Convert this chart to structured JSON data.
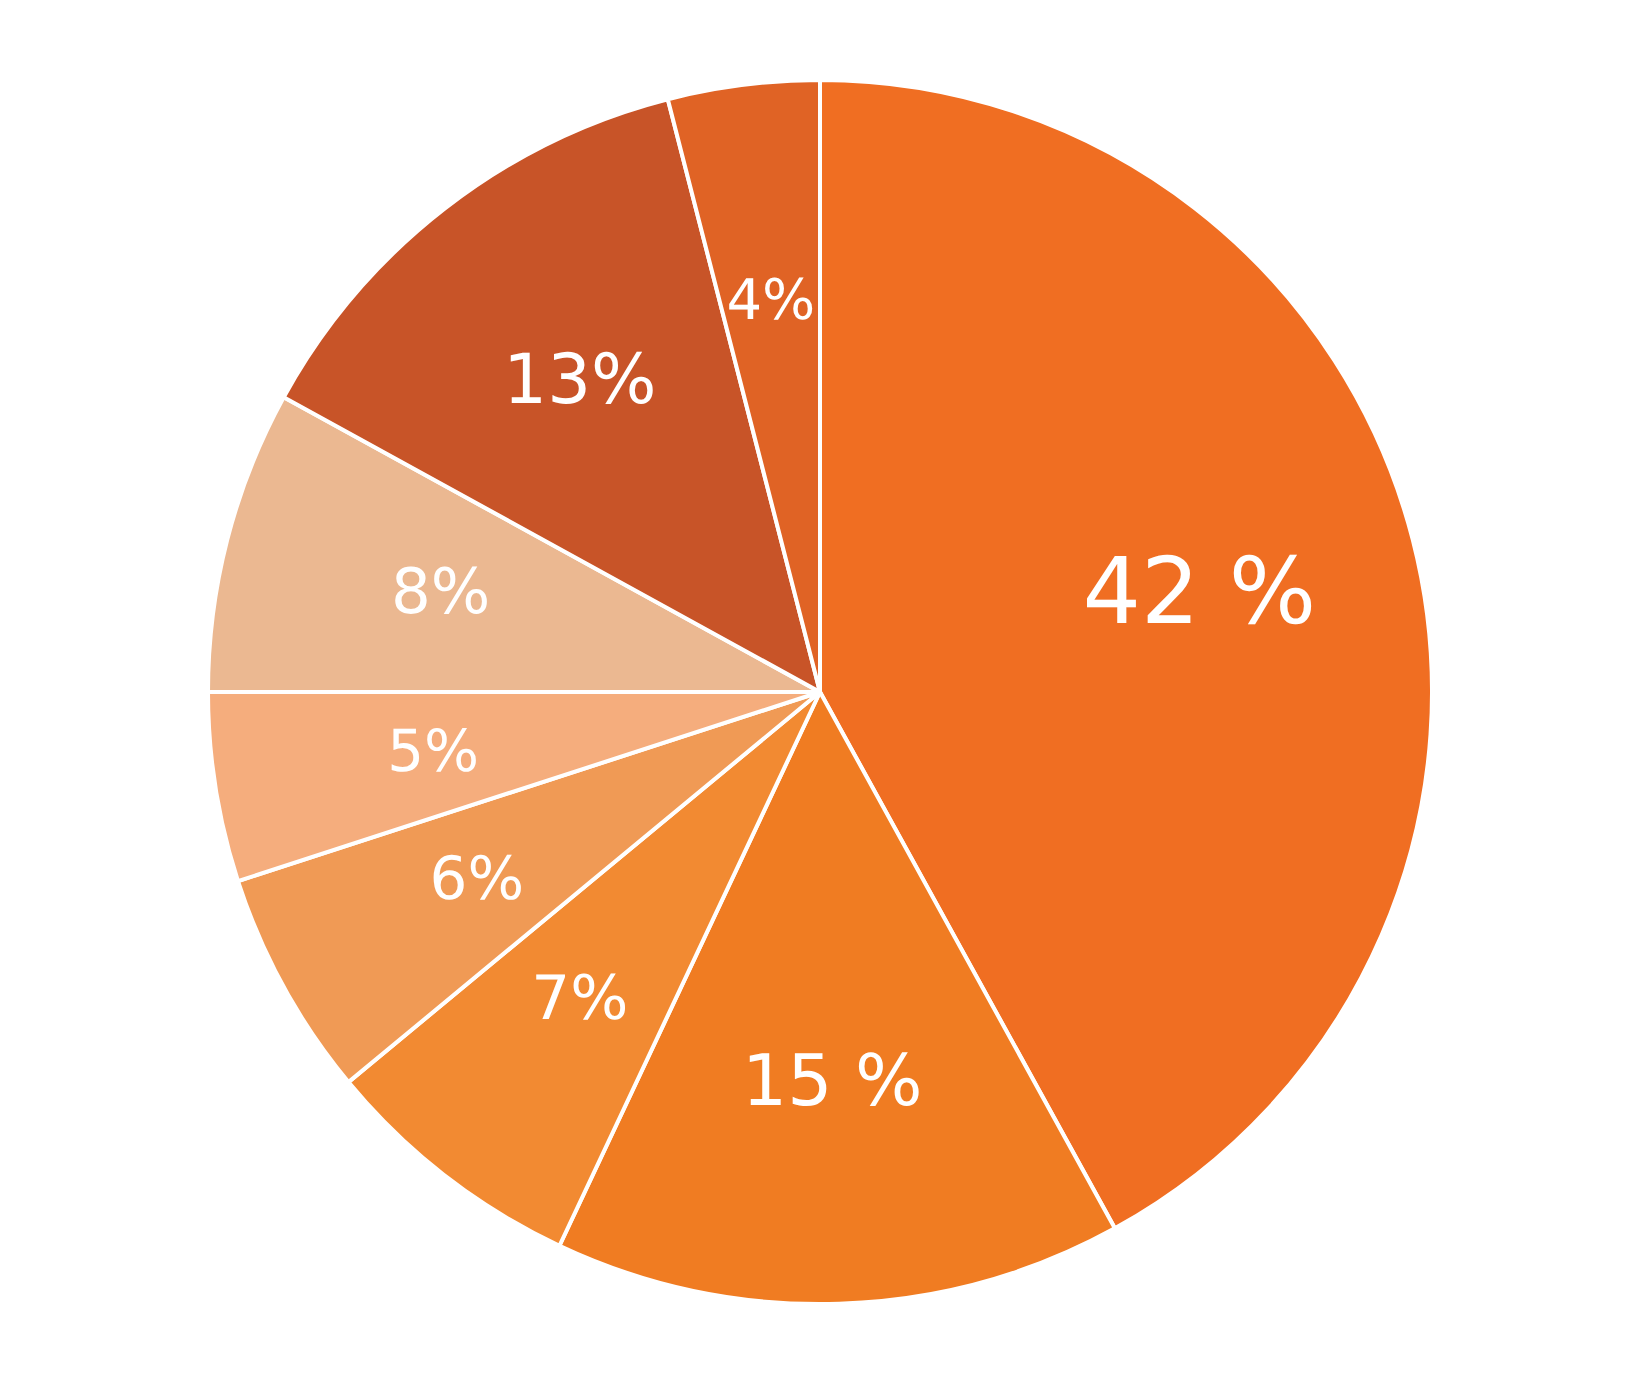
{
  "chart_data": {
    "type": "pie",
    "categories": [
      null,
      null,
      null,
      null,
      null,
      null,
      null,
      null
    ],
    "values": [
      42,
      15,
      7,
      6,
      5,
      8,
      13,
      4
    ],
    "value_labels": [
      "42 %",
      "15 %",
      "7%",
      "6%",
      "5%",
      "8%",
      "13%",
      "4%"
    ],
    "colors": [
      "#f06e22",
      "#f07c22",
      "#f28a32",
      "#f09a55",
      "#f5ad7d",
      "#ebb891",
      "#c85428",
      "#e06325"
    ],
    "legend": false
  }
}
